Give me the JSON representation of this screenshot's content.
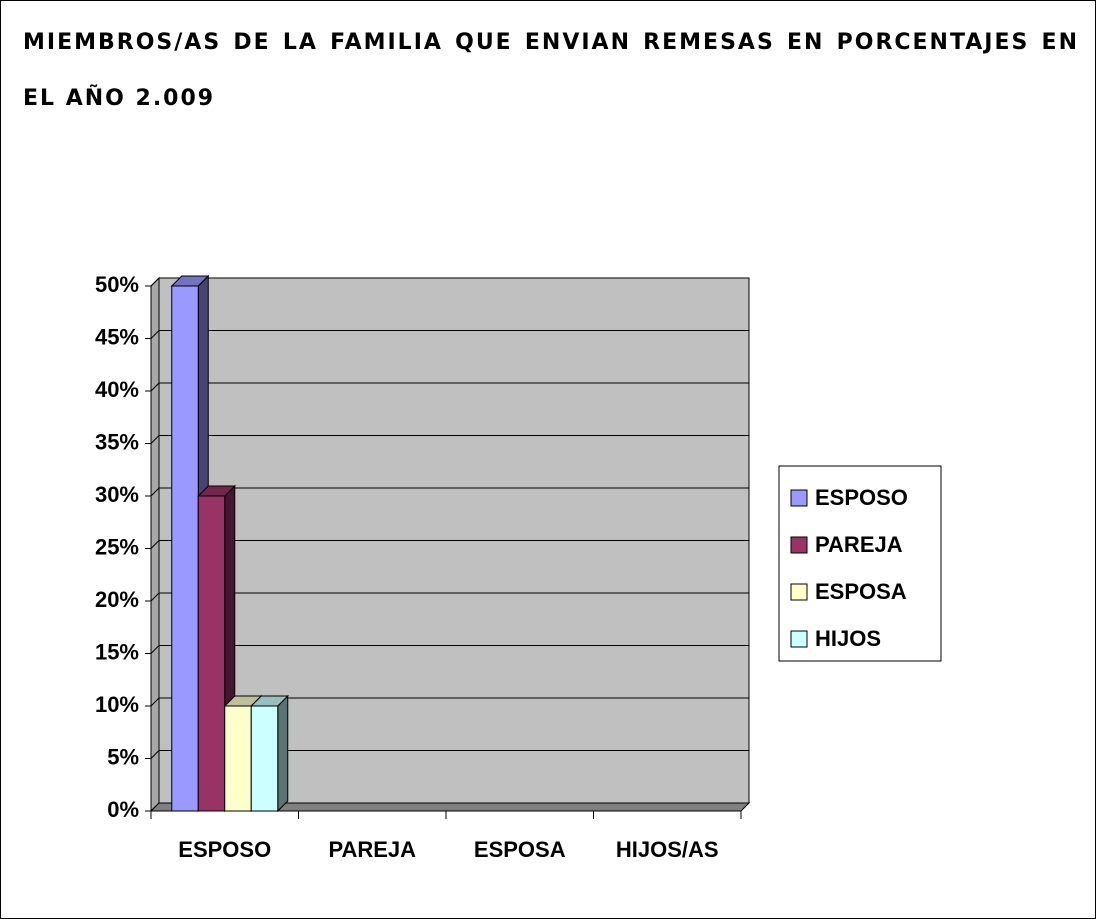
{
  "chart_data": {
    "type": "bar3d",
    "title": "MIEMBROS/AS DE LA FAMILIA QUE ENVIAN REMESAS EN PORCENTAJES EN EL AÑO 2.009",
    "categories": [
      "ESPOSO",
      "PAREJA",
      "ESPOSA",
      "HIJOS/AS"
    ],
    "series": [
      {
        "name": "ESPOSO",
        "color": "#9999ff",
        "values": [
          50,
          null,
          null,
          null
        ]
      },
      {
        "name": "PAREJA",
        "color": "#993366",
        "values": [
          30,
          null,
          null,
          null
        ]
      },
      {
        "name": "ESPOSA",
        "color": "#ffffcc",
        "values": [
          10,
          null,
          null,
          null
        ]
      },
      {
        "name": "HIJOS",
        "color": "#ccffff",
        "values": [
          10,
          null,
          null,
          null
        ]
      }
    ],
    "ylim": [
      0,
      50
    ],
    "yticks": [
      {
        "value": 0,
        "label": "0%"
      },
      {
        "value": 5,
        "label": "5%"
      },
      {
        "value": 10,
        "label": "10%"
      },
      {
        "value": 15,
        "label": "15%"
      },
      {
        "value": 20,
        "label": "20%"
      },
      {
        "value": 25,
        "label": "25%"
      },
      {
        "value": 30,
        "label": "30%"
      },
      {
        "value": 35,
        "label": "35%"
      },
      {
        "value": 40,
        "label": "40%"
      },
      {
        "value": 45,
        "label": "45%"
      },
      {
        "value": 50,
        "label": "50%"
      }
    ],
    "grid": true,
    "legend": "right"
  }
}
